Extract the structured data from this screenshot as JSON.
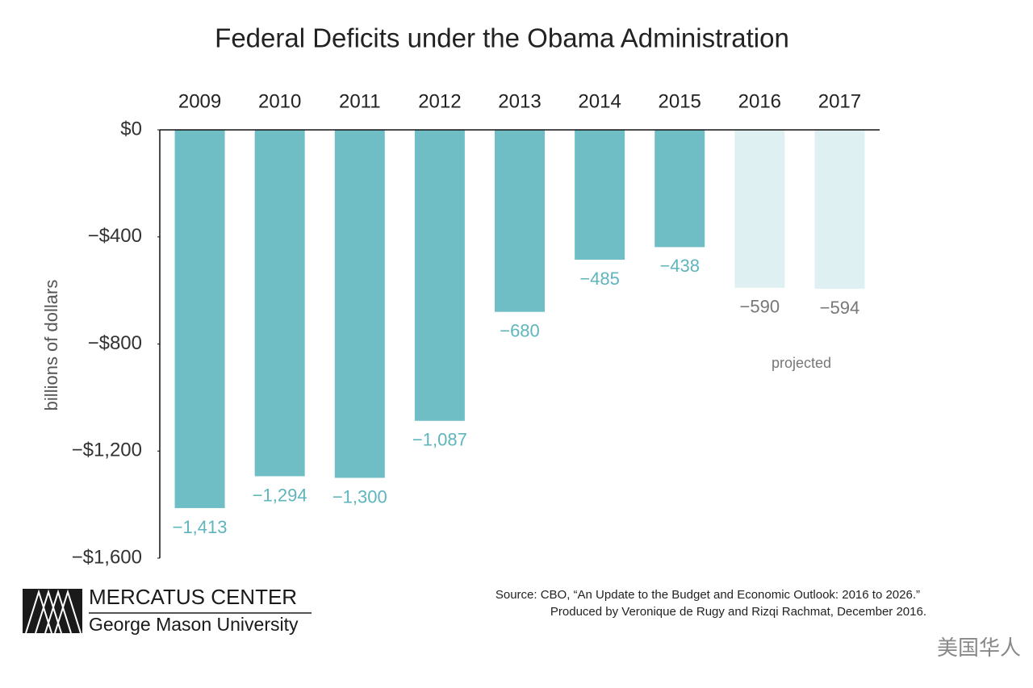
{
  "chart_data": {
    "type": "bar",
    "title": "Federal Deficits under the Obama Administration",
    "y_label": "billions of dollars",
    "categories": [
      "2009",
      "2010",
      "2011",
      "2012",
      "2013",
      "2014",
      "2015",
      "2016",
      "2017"
    ],
    "values": [
      -1413,
      -1294,
      -1300,
      -1087,
      -680,
      -485,
      -438,
      -590,
      -594
    ],
    "value_labels": [
      "−1,413",
      "−1,294",
      "−1,300",
      "−1,087",
      "−680",
      "−485",
      "−438",
      "−590",
      "−594"
    ],
    "colors": [
      "#6fbec6",
      "#6fbec6",
      "#6fbec6",
      "#6fbec6",
      "#6fbec6",
      "#6fbec6",
      "#6fbec6",
      "#dff0f3",
      "#dff0f3"
    ],
    "label_colors": [
      "#5fb5bd",
      "#5fb5bd",
      "#5fb5bd",
      "#5fb5bd",
      "#5fb5bd",
      "#5fb5bd",
      "#5fb5bd",
      "#777777",
      "#777777"
    ],
    "ylim": [
      -1600,
      0
    ],
    "yticks": [
      {
        "value": 0,
        "label": "$0"
      },
      {
        "value": -400,
        "label": "−$400"
      },
      {
        "value": -800,
        "label": "−$800"
      },
      {
        "value": -1200,
        "label": "−$1,200"
      },
      {
        "value": -1600,
        "label": "−$1,600"
      }
    ],
    "annotation": "projected",
    "source": "Source: CBO, “An Update to the Budget and Economic Outlook: 2016 to 2026.”",
    "credit": "Produced by Veronique de Rugy and Rizqi Rachmat, December 2016."
  },
  "logo": {
    "name": "MERCATUS CENTER",
    "subtitle": "George Mason University"
  },
  "watermark": "美国华人"
}
